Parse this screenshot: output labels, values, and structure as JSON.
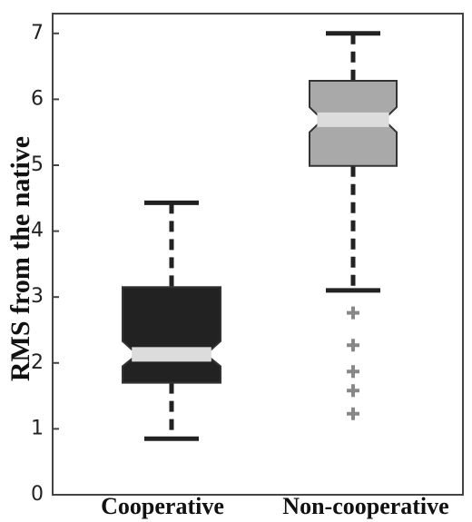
{
  "chart_data": {
    "type": "box",
    "y_label": "RMS from the native",
    "ylim": [
      0,
      7.3
    ],
    "yticks": [
      0,
      1,
      2,
      3,
      4,
      5,
      6,
      7
    ],
    "boxes": [
      {
        "name": "Cooperative",
        "color": "#222222",
        "whisker_low": 0.85,
        "q1": 1.7,
        "median": 2.13,
        "q3": 3.15,
        "whisker_high": 4.43,
        "notch": [
          1.95,
          2.33
        ],
        "outliers": []
      },
      {
        "name": "Non-cooperative",
        "color": "#a9a9a9",
        "whisker_low": 3.1,
        "q1": 4.99,
        "median": 5.69,
        "q3": 6.28,
        "whisker_high": 7.0,
        "notch": [
          5.5,
          5.88
        ],
        "outliers": [
          2.76,
          2.27,
          1.87,
          1.58,
          1.23
        ]
      }
    ]
  }
}
